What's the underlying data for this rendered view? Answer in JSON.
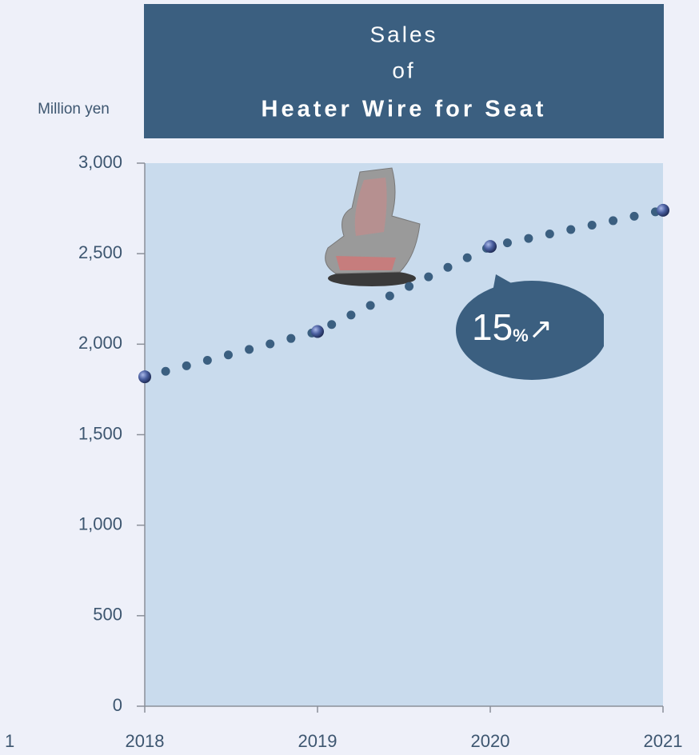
{
  "chart_data": {
    "type": "line",
    "title": [
      "Sales",
      "of",
      "Heater Wire for Seat"
    ],
    "y_label": "Million yen",
    "edge_label": "1",
    "annotation": [
      "15",
      "%",
      "↗"
    ],
    "x": [
      2018,
      2019,
      2020,
      2021
    ],
    "xlim": [
      2018,
      2021
    ],
    "xticks": [
      2018,
      2019,
      2020,
      2021
    ],
    "series": [
      {
        "color": "#3b5f80",
        "values": [
          1820,
          2070,
          2540,
          2740
        ]
      }
    ],
    "ylim": [
      0,
      3000
    ],
    "yticks": [
      0,
      500,
      {
        "value": 1000,
        "label": "1,000"
      },
      {
        "value": 1500,
        "label": "1,500"
      },
      {
        "value": 2000,
        "label": "2,000"
      },
      {
        "value": 2500,
        "label": "2,500"
      },
      {
        "value": 3000,
        "label": "3,000"
      }
    ]
  }
}
